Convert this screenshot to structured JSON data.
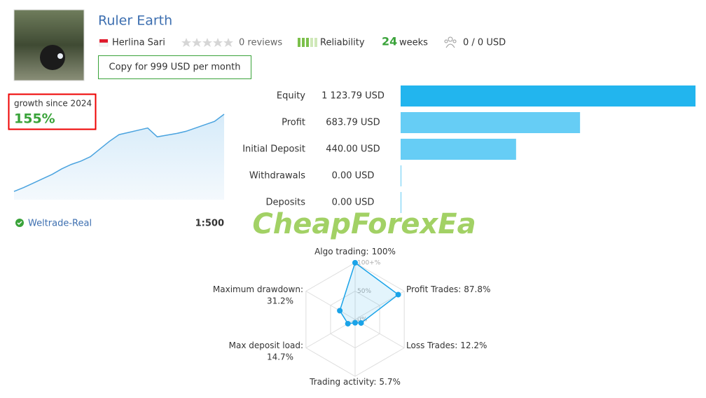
{
  "header": {
    "title": "Ruler Earth",
    "author": "Herlina Sari",
    "reviews": "0 reviews",
    "reliability": "Reliability",
    "weeks_count": "24",
    "weeks": "weeks",
    "subscribers": "0 / 0 USD",
    "copy_button": "Copy for 999 USD per month"
  },
  "growth": {
    "label": "growth since 2024",
    "value": "155%",
    "curve": [
      15,
      22,
      30,
      38,
      46,
      56,
      64,
      70,
      78,
      92,
      106,
      118,
      122,
      126,
      130,
      114,
      117,
      120,
      124,
      130,
      136,
      142,
      155
    ],
    "color": "#4aa3df"
  },
  "account": {
    "broker": "Weltrade-Real",
    "leverage": "1:500"
  },
  "bars": [
    {
      "label": "Equity",
      "value": 1123.79,
      "value_label": "1 123.79 USD",
      "color": "#22b5ee"
    },
    {
      "label": "Profit",
      "value": 683.79,
      "value_label": "683.79 USD",
      "color": "#66cdf5"
    },
    {
      "label": "Initial Deposit",
      "value": 440.0,
      "value_label": "440.00 USD",
      "color": "#66cdf5"
    },
    {
      "label": "Withdrawals",
      "value": 0.0,
      "value_label": "0.00 USD",
      "color": "#66cdf5"
    },
    {
      "label": "Deposits",
      "value": 0.0,
      "value_label": "0.00 USD",
      "color": "#66cdf5"
    }
  ],
  "radar": {
    "color": "#1aa3e8",
    "ticks": [
      {
        "value": 0,
        "label": "0%"
      },
      {
        "value": 50,
        "label": "50%"
      },
      {
        "value": 100,
        "label": "100+%"
      }
    ],
    "axes": [
      {
        "name": "Algo trading:",
        "value": 100,
        "value_label": "100%"
      },
      {
        "name": "Profit Trades:",
        "value": 87.8,
        "value_label": "87.8%"
      },
      {
        "name": "Loss Trades:",
        "value": 12.2,
        "value_label": "12.2%"
      },
      {
        "name": "Trading activity:",
        "value": 5.7,
        "value_label": "5.7%"
      },
      {
        "name": "Max deposit load:",
        "value": 14.7,
        "value_label": "14.7%"
      },
      {
        "name": "Maximum drawdown:",
        "value": 31.2,
        "value_label": "31.2%"
      }
    ]
  },
  "watermark": "CheapForexEa"
}
